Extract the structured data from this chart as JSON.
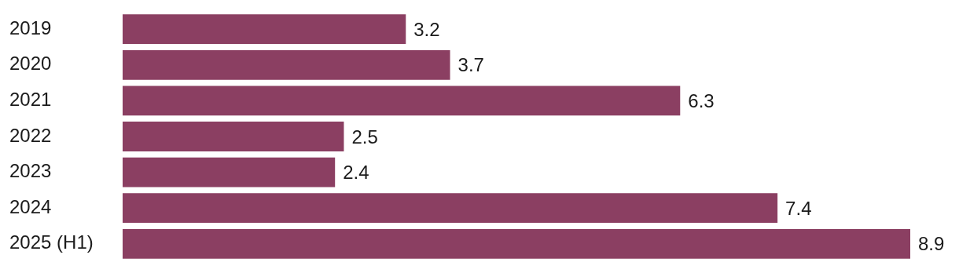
{
  "chart_data": {
    "type": "bar",
    "orientation": "horizontal",
    "categories": [
      "2019",
      "2020",
      "2021",
      "2022",
      "2023",
      "2024",
      "2025 (H1)"
    ],
    "values": [
      3.2,
      3.7,
      6.3,
      2.5,
      2.4,
      7.4,
      8.9
    ],
    "color": "#8b3f62",
    "data_labels": true,
    "legend": false
  }
}
